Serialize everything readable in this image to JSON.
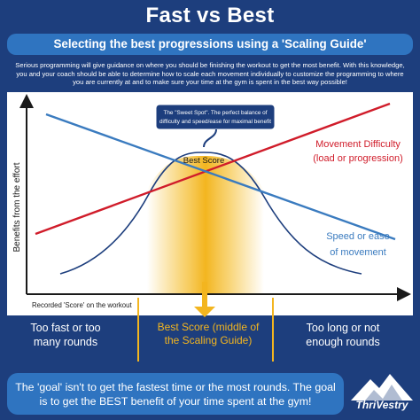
{
  "title": "Fast vs Best",
  "subtitle": "Selecting the best progressions using a 'Scaling Guide'",
  "intro": "Serious programming will give guidance on where you should be finishing the workout to get the most benefit. With this knowledge, you and your coach should be able to determine how to scale each movement individually to customize the programming to where you are currently at and to make sure your time at the gym is spent in the best way possible!",
  "diagram": {
    "y_axis_label": "Benefits from the effort",
    "x_axis_label": "Recorded 'Score' on the workout",
    "sweet_spot_callout": [
      "The \"Sweet Spot\". The perfect balance of",
      "difficulty and speed/ease for maximal benefit"
    ],
    "best_score_label": "Best Score",
    "movement_difficulty_label": [
      "Movement Difficulty",
      "(load or progression)"
    ],
    "speed_label": [
      "Speed or ease",
      "of movement"
    ],
    "colors": {
      "bell_curve": "#1d3e7d",
      "movement_difficulty": "#d01c2a",
      "speed": "#3a7bbf",
      "sweet_spot": "#f3b51f",
      "axis": "#1a1a1a"
    }
  },
  "bottom_labels": {
    "left": "Too fast or too many rounds",
    "middle": "Best Score (middle of the Scaling Guide)",
    "right": "Too long or not enough rounds"
  },
  "goal_text": "The 'goal' isn't to get the fastest time or the most rounds. The goal is to get the BEST benefit of your time spent at the gym!",
  "logo": {
    "name": "ThriVestry",
    "icon": "mountain-icon"
  }
}
